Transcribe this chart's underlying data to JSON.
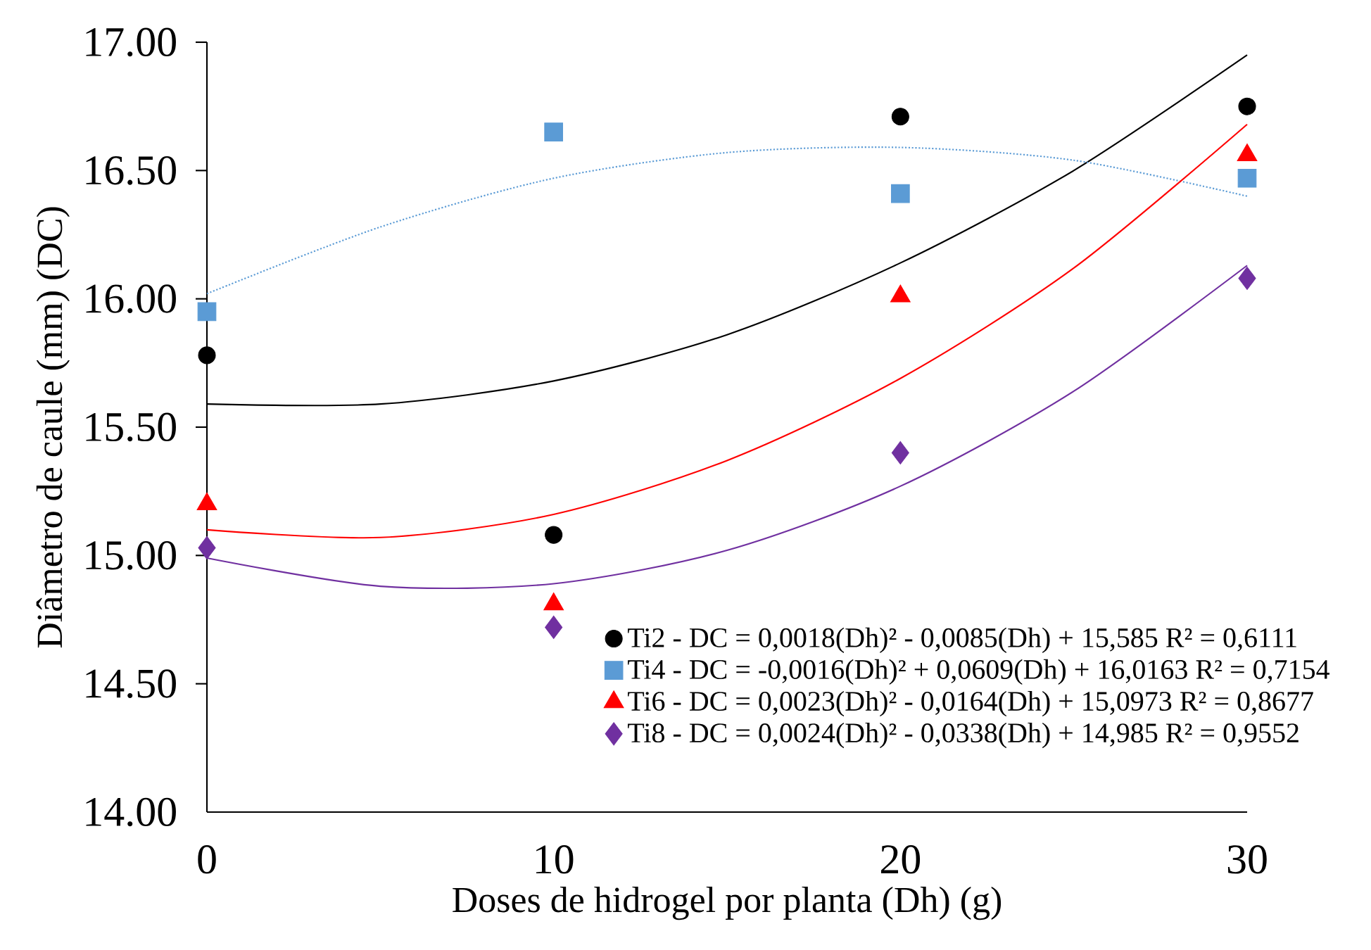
{
  "chart_data": {
    "type": "scatter",
    "xlabel": "Doses de hidrogel por planta (Dh) (g)",
    "ylabel": "Diâmetro de caule (mm) (DC)",
    "x": [
      0,
      10,
      20,
      30
    ],
    "xlim": [
      0,
      30
    ],
    "xticks": [
      0,
      10,
      20,
      30
    ],
    "ylim": [
      14,
      17
    ],
    "yticks": [
      {
        "value": 14,
        "label": "14.00"
      },
      {
        "value": 14.5,
        "label": "14.50"
      },
      {
        "value": 15,
        "label": "15.00"
      },
      {
        "value": 15.5,
        "label": "15.50"
      },
      {
        "value": 16,
        "label": "16.00"
      },
      {
        "value": 16.5,
        "label": "16.50"
      },
      {
        "value": 17,
        "label": "17.00"
      }
    ],
    "legend": "bottom right",
    "series": [
      {
        "name": "Ti2 - DC = 0,0018(Dh)² - 0,0085(Dh) + 15,585 R² = 0,6111",
        "color": "#000000",
        "marker": "circle",
        "values": [
          15.78,
          15.08,
          16.71,
          16.75
        ]
      },
      {
        "name": "Ti4 - DC = -0,0016(Dh)² + 0,0609(Dh) + 16,0163 R² = 0,7154",
        "color": "#5b9bd5",
        "marker": "square",
        "values": [
          15.95,
          16.65,
          16.41,
          16.47
        ]
      },
      {
        "name": "Ti6 - DC = 0,0023(Dh)² - 0,0164(Dh) + 15,0973 R² = 0,8677",
        "color": "#ff0000",
        "marker": "triangle",
        "values": [
          15.2,
          14.81,
          16.01,
          16.56
        ]
      },
      {
        "name": "Ti8 - DC = 0,0024(Dh)² - 0,0338(Dh) + 14,985 R² = 0,9552",
        "color": "#7030a0",
        "marker": "diamond",
        "values": [
          15.03,
          14.72,
          15.4,
          16.08
        ]
      },
      {
        "type": "line",
        "color": "#000000",
        "marker": "none",
        "line_style": "solid",
        "x": [
          0,
          5,
          10,
          15,
          20,
          25,
          30
        ],
        "values": [
          15.59,
          15.59,
          15.68,
          15.86,
          16.14,
          16.5,
          16.95
        ]
      },
      {
        "type": "line",
        "color": "#5b9bd5",
        "marker": "none",
        "line_style": "dotted",
        "x": [
          0,
          5,
          10,
          15,
          20,
          25,
          30
        ],
        "values": [
          16.02,
          16.28,
          16.47,
          16.57,
          16.59,
          16.54,
          16.4
        ]
      },
      {
        "type": "line",
        "color": "#ff0000",
        "marker": "none",
        "line_style": "solid",
        "x": [
          0,
          5,
          10,
          15,
          20,
          25,
          30
        ],
        "values": [
          15.1,
          15.07,
          15.16,
          15.37,
          15.69,
          16.12,
          16.68
        ]
      },
      {
        "type": "line",
        "color": "#7030a0",
        "marker": "none",
        "line_style": "solid",
        "x": [
          0,
          5,
          10,
          15,
          20,
          25,
          30
        ],
        "values": [
          14.99,
          14.88,
          14.89,
          15.02,
          15.27,
          15.64,
          16.13
        ]
      }
    ]
  }
}
